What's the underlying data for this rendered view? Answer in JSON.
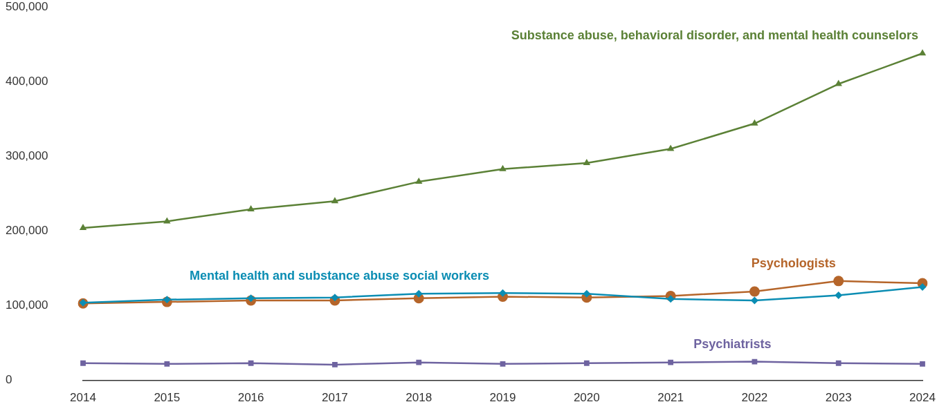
{
  "chart_data": {
    "type": "line",
    "categories": [
      "2014",
      "2015",
      "2016",
      "2017",
      "2018",
      "2019",
      "2020",
      "2021",
      "2022",
      "2023",
      "2024"
    ],
    "series": [
      {
        "name": "Substance abuse, behavioral disorder, and mental health counselors",
        "color": "#5b8136",
        "marker": "triangle",
        "values": [
          204000,
          213000,
          229000,
          240000,
          266000,
          283000,
          291000,
          310000,
          344000,
          397000,
          438000
        ]
      },
      {
        "name": "Mental health and substance abuse social workers",
        "color": "#0b8db3",
        "marker": "diamond",
        "values": [
          104000,
          108000,
          110000,
          111000,
          116000,
          117000,
          116000,
          109000,
          107000,
          114000,
          125000
        ]
      },
      {
        "name": "Psychologists",
        "color": "#b5652a",
        "marker": "circle",
        "values": [
          103000,
          105000,
          107000,
          107000,
          110000,
          112000,
          111000,
          113000,
          119000,
          133000,
          130000
        ]
      },
      {
        "name": "Psychiatrists",
        "color": "#6e63a0",
        "marker": "square",
        "values": [
          23000,
          22000,
          23000,
          21000,
          24000,
          22000,
          23000,
          24000,
          25000,
          23000,
          22000
        ]
      }
    ],
    "ylim": [
      0,
      500000
    ],
    "yticks": [
      0,
      {
        "value": 100000,
        "label": "100,000"
      },
      {
        "value": 200000,
        "label": "200,000"
      },
      {
        "value": 300000,
        "label": "300,000"
      },
      {
        "value": 400000,
        "label": "400,000"
      },
      {
        "value": 500000,
        "label": "500,000"
      }
    ],
    "grid": false,
    "legend": false,
    "line_style": "solid"
  }
}
